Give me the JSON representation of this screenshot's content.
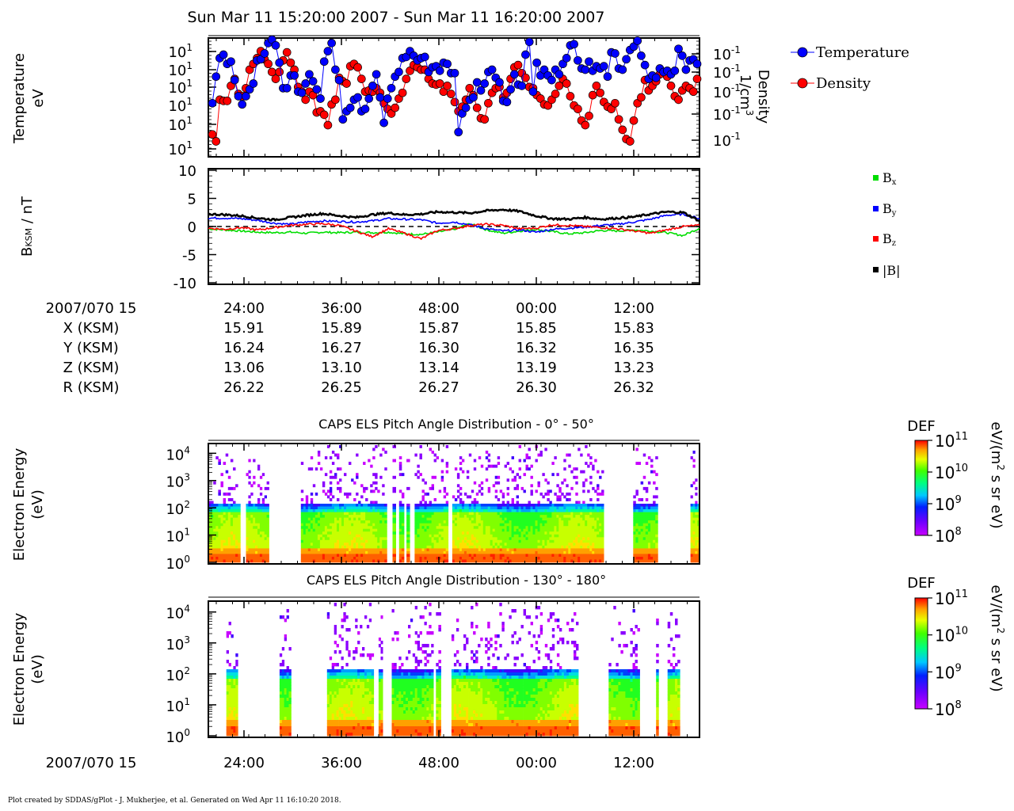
{
  "header": {
    "title": "Sun Mar 11 15:20:00 2007 - Sun Mar 11 16:20:00 2007"
  },
  "footer": {
    "credit": "Plot created by SDDAS/gPlot - J. Mukherjee, et al.  Generated on Wed Apr 11 16:10:20 2018."
  },
  "colors": {
    "temperature": "#0000ff",
    "density": "#ff0000",
    "bx": "#00dd00",
    "by": "#0000ff",
    "bz": "#ff0000",
    "bmag": "#000000"
  },
  "chart_data": [
    {
      "id": "moments",
      "type": "scatter",
      "ylabel": "Temperature",
      "yunit": "eV",
      "y2label": "Density",
      "y2unit": "1/cm",
      "y2unit_sup": "3",
      "y_ticks": [
        "10",
        "10",
        "10",
        "10",
        "10",
        "10"
      ],
      "y_tick_sup": "1",
      "y2_ticks": [
        "10",
        "10",
        "10",
        "10",
        "10"
      ],
      "y2_tick_sup": "-1",
      "legend": {
        "placement": "right",
        "entries": [
          "Temperature",
          "Density"
        ]
      },
      "x_minutes": [
        0,
        60
      ],
      "series": [
        {
          "name": "Temperature",
          "color": "#0000ff",
          "level": [
            0.45,
            0.68,
            0.84,
            0.87,
            0.79,
            0.81,
            0.65,
            0.51,
            0.44,
            0.51,
            0.57,
            0.62,
            0.82,
            0.83,
            0.88,
            0.97,
            1.0,
            0.95,
            0.8,
            0.58,
            0.58,
            0.69,
            0.69,
            0.55,
            0.54,
            0.62,
            0.7,
            0.64,
            0.57,
            0.49,
            0.81,
            0.9,
            0.97,
            0.74,
            0.65,
            0.31,
            0.38,
            0.41,
            0.48,
            0.5,
            0.38,
            0.4,
            0.49,
            0.6,
            0.7,
            0.5,
            0.28,
            0.49,
            0.58,
            0.68,
            0.72,
            0.84,
            0.85,
            0.9,
            0.86,
            0.82,
            0.84,
            0.85,
            0.72,
            0.76,
            0.77,
            0.73,
            0.8,
            0.79,
            0.71,
            0.71,
            0.2,
            0.36,
            0.41,
            0.48,
            0.5,
            0.63,
            0.56,
            0.62,
            0.72,
            0.74,
            0.67,
            0.63,
            0.47,
            0.46,
            0.57,
            0.7,
            0.61,
            0.6,
            0.87,
            0.98,
            0.55,
            0.8,
            0.69,
            0.74,
            0.69,
            0.65,
            0.74,
            0.7,
            0.79,
            0.84,
            0.95,
            0.96,
            0.82,
            0.75,
            0.74,
            0.81,
            0.73,
            0.77,
            0.75,
            0.77,
            0.68,
            0.89,
            0.88,
            0.75,
            0.74,
            0.83,
            0.91,
            0.94,
            0.99,
            0.86,
            0.78,
            0.66,
            0.69,
            0.67,
            0.75,
            0.72,
            0.73,
            0.7,
            0.73,
            0.92,
            0.86,
            0.74,
            0.82,
            0.83,
            0.79
          ]
        },
        {
          "name": "Density",
          "color": "#ff0000",
          "level": [
            0.18,
            0.12,
            0.48,
            0.47,
            0.47,
            0.6,
            0.66,
            0.53,
            0.51,
            0.58,
            0.74,
            0.79,
            0.84,
            0.9,
            0.83,
            0.79,
            0.72,
            0.66,
            0.72,
            0.82,
            0.89,
            0.8,
            0.74,
            0.59,
            0.55,
            0.48,
            0.55,
            0.52,
            0.37,
            0.38,
            0.35,
            0.26,
            0.44,
            0.48,
            0.67,
            0.64,
            0.62,
            0.77,
            0.79,
            0.76,
            0.66,
            0.55,
            0.56,
            0.55,
            0.58,
            0.54,
            0.45,
            0.4,
            0.36,
            0.41,
            0.49,
            0.54,
            0.66,
            0.73,
            0.78,
            0.76,
            0.74,
            0.74,
            0.66,
            0.62,
            0.61,
            0.62,
            0.55,
            0.6,
            0.53,
            0.46,
            0.38,
            0.42,
            0.48,
            0.58,
            0.52,
            0.41,
            0.32,
            0.31,
            0.45,
            0.54,
            0.58,
            0.59,
            0.5,
            0.54,
            0.66,
            0.76,
            0.78,
            0.71,
            0.67,
            0.59,
            0.58,
            0.52,
            0.49,
            0.44,
            0.43,
            0.48,
            0.53,
            0.6,
            0.66,
            0.62,
            0.51,
            0.43,
            0.4,
            0.3,
            0.26,
            0.34,
            0.52,
            0.6,
            0.54,
            0.46,
            0.42,
            0.4,
            0.45,
            0.31,
            0.22,
            0.14,
            0.12,
            0.3,
            0.45,
            0.5,
            0.65,
            0.56,
            0.6,
            0.64,
            0.7,
            0.72,
            0.68,
            0.6,
            0.51,
            0.48,
            0.56,
            0.6,
            0.58,
            0.55,
            0.66
          ]
        }
      ]
    },
    {
      "id": "magnetic-field",
      "type": "line",
      "ylabel": "B",
      "ylabel_sub": "KSM",
      "yunit": " / nT",
      "ylim": [
        -10,
        10
      ],
      "y_ticks": [
        10,
        5,
        0,
        -5,
        -10
      ],
      "x_minutes": [
        0,
        60
      ],
      "legend": {
        "placement": "right",
        "entries": [
          "B",
          "B",
          "B",
          "|B|"
        ],
        "subs": [
          "x",
          "y",
          "z",
          ""
        ]
      },
      "series": [
        {
          "name": "Bx",
          "color": "#00dd00",
          "t": [
            0,
            2,
            4,
            6,
            8,
            10,
            12,
            14,
            16,
            18,
            20,
            22,
            24,
            26,
            28,
            30,
            32,
            34,
            36,
            38,
            40,
            42,
            44,
            46,
            48,
            50,
            52,
            54,
            56,
            58,
            60
          ],
          "values": [
            -0.4,
            -0.6,
            -0.8,
            -1.0,
            -1.1,
            -1.0,
            -1.2,
            -1.0,
            -1.1,
            -1.0,
            -1.1,
            -1.0,
            -1.3,
            -1.4,
            -1.0,
            -0.5,
            0.5,
            -0.6,
            -1.2,
            -0.8,
            -0.5,
            -0.9,
            -1.3,
            -1.1,
            -0.7,
            -0.8,
            -0.6,
            -0.8,
            -1.1,
            -1.6,
            -0.3
          ]
        },
        {
          "name": "By",
          "color": "#0000ff",
          "t": [
            0,
            2,
            4,
            6,
            8,
            10,
            12,
            14,
            16,
            18,
            20,
            22,
            24,
            26,
            28,
            30,
            32,
            34,
            36,
            38,
            40,
            42,
            44,
            46,
            48,
            50,
            52,
            54,
            56,
            58,
            60
          ],
          "values": [
            1.5,
            1.5,
            1.4,
            1.1,
            0.6,
            0.4,
            0.8,
            1.0,
            0.9,
            0.8,
            1.0,
            1.4,
            1.3,
            1.2,
            0.6,
            0.8,
            0.3,
            -0.4,
            -0.8,
            -0.6,
            -1.0,
            -0.5,
            -0.3,
            -0.1,
            0.2,
            0.4,
            0.8,
            1.3,
            2.0,
            2.2,
            1.4
          ]
        },
        {
          "name": "Bz",
          "color": "#ff0000",
          "t": [
            0,
            2,
            4,
            6,
            8,
            10,
            12,
            14,
            16,
            18,
            20,
            22,
            24,
            26,
            28,
            30,
            32,
            34,
            36,
            38,
            40,
            42,
            44,
            46,
            48,
            50,
            52,
            54,
            56,
            58,
            60
          ],
          "values": [
            -0.3,
            -0.5,
            -0.2,
            -0.6,
            -0.2,
            0.2,
            0.4,
            0.5,
            0.2,
            -0.8,
            -1.8,
            -0.4,
            -1.2,
            -2.2,
            -0.7,
            -0.4,
            0.2,
            0.4,
            0.2,
            -0.4,
            -0.3,
            0.3,
            0.2,
            0.0,
            -0.2,
            -0.4,
            -0.8,
            -1.2,
            -0.6,
            0.0,
            0.2
          ]
        },
        {
          "name": "|B|",
          "color": "#000000",
          "t": [
            0,
            2,
            4,
            6,
            8,
            10,
            12,
            14,
            16,
            18,
            20,
            22,
            24,
            26,
            28,
            30,
            32,
            34,
            36,
            38,
            40,
            42,
            44,
            46,
            48,
            50,
            52,
            54,
            56,
            58,
            60
          ],
          "values": [
            2.2,
            2.1,
            1.9,
            1.5,
            1.2,
            1.6,
            2.0,
            2.3,
            1.9,
            1.6,
            2.1,
            2.4,
            2.1,
            2.2,
            2.6,
            2.5,
            2.4,
            2.8,
            3.0,
            2.7,
            1.9,
            1.4,
            1.3,
            1.6,
            1.3,
            1.5,
            1.7,
            2.2,
            2.6,
            2.5,
            1.0
          ]
        }
      ]
    },
    {
      "id": "pad-0-50",
      "type": "heatmap",
      "title": "CAPS ELS Pitch Angle Distribution - 0° - 50°",
      "ylabel": "Electron Energy",
      "yunit": "(eV)",
      "y_ticks": [
        "10",
        "10",
        "10",
        "10",
        "10"
      ],
      "y_tick_sups": [
        "4",
        "3",
        "2",
        "1",
        "0"
      ],
      "ylog_decades": [
        0,
        4.3
      ],
      "x_minutes": [
        0,
        60
      ],
      "colorbar": {
        "label": "DEF",
        "unit_label": "eV/(m",
        "unit_sup": "2",
        "unit_tail": " s sr eV)",
        "ticks": [
          "10",
          "10",
          "10",
          "10"
        ],
        "tick_sups": [
          "11",
          "10",
          "9",
          "8"
        ]
      },
      "data_intervals_min": [
        [
          0,
          3.9
        ],
        [
          4.6,
          7.4
        ],
        [
          11.3,
          21.8
        ],
        [
          22.5,
          22.9
        ],
        [
          23.3,
          23.9
        ],
        [
          24.2,
          24.6
        ],
        [
          25.2,
          29.3
        ],
        [
          29.8,
          48.3
        ],
        [
          51.9,
          54.9
        ],
        [
          58.9,
          60
        ]
      ],
      "data_level": [
        0.55,
        0.6,
        0.6,
        0.55,
        0.6,
        0.6,
        0.58,
        0.7,
        0.6,
        0.65,
        0.6,
        0.6,
        0.55,
        0.6,
        0.6,
        0.6,
        0.62,
        0.6,
        0.6,
        0.55,
        0.6,
        0.62,
        0.6,
        0.6,
        0.6,
        0.58,
        0.62,
        0.6,
        0.6,
        0.6
      ]
    },
    {
      "id": "pad-130-180",
      "type": "heatmap",
      "title": "CAPS ELS Pitch Angle Distribution - 130° - 180°",
      "ylabel": "Electron Energy",
      "yunit": "(eV)",
      "y_ticks": [
        "10",
        "10",
        "10",
        "10",
        "10"
      ],
      "y_tick_sups": [
        "4",
        "3",
        "2",
        "1",
        "0"
      ],
      "ylog_decades": [
        0,
        4.3
      ],
      "x_minutes": [
        0,
        60
      ],
      "colorbar": {
        "label": "DEF",
        "unit_label": "eV/(m",
        "unit_sup": "2",
        "unit_tail": " s sr eV)",
        "ticks": [
          "10",
          "10",
          "10",
          "10"
        ],
        "tick_sups": [
          "11",
          "10",
          "9",
          "8"
        ]
      },
      "data_intervals_min": [
        [
          2.2,
          3.6
        ],
        [
          8.7,
          10.1
        ],
        [
          14.5,
          20.2
        ],
        [
          20.8,
          21.3
        ],
        [
          22.4,
          27.5
        ],
        [
          27.8,
          28.4
        ],
        [
          29.7,
          45.2
        ],
        [
          48.9,
          52.7
        ],
        [
          54.7,
          55.0
        ],
        [
          56.1,
          57.6
        ]
      ],
      "data_level": [
        0.55,
        0.58,
        0.6,
        0.6,
        0.62,
        0.6,
        0.58,
        0.6,
        0.62,
        0.6,
        0.6,
        0.6,
        0.65,
        0.6,
        0.6,
        0.6,
        0.62,
        0.6,
        0.58,
        0.6,
        0.6,
        0.6,
        0.62,
        0.6,
        0.6,
        0.6,
        0.58,
        0.6,
        0.6,
        0.6
      ]
    }
  ],
  "time_axis": {
    "label": "2007/070 15",
    "ticks": [
      "24:00",
      "36:00",
      "48:00",
      "00:00",
      "12:00"
    ],
    "ephemeris": [
      {
        "name": "X (KSM)",
        "values": [
          "15.91",
          "15.89",
          "15.87",
          "15.85",
          "15.83"
        ]
      },
      {
        "name": "Y (KSM)",
        "values": [
          "16.24",
          "16.27",
          "16.30",
          "16.32",
          "16.35"
        ]
      },
      {
        "name": "Z (KSM)",
        "values": [
          "13.06",
          "13.10",
          "13.14",
          "13.19",
          "13.23"
        ]
      },
      {
        "name": "R (KSM)",
        "values": [
          "26.22",
          "26.25",
          "26.27",
          "26.30",
          "26.32"
        ]
      }
    ]
  }
}
